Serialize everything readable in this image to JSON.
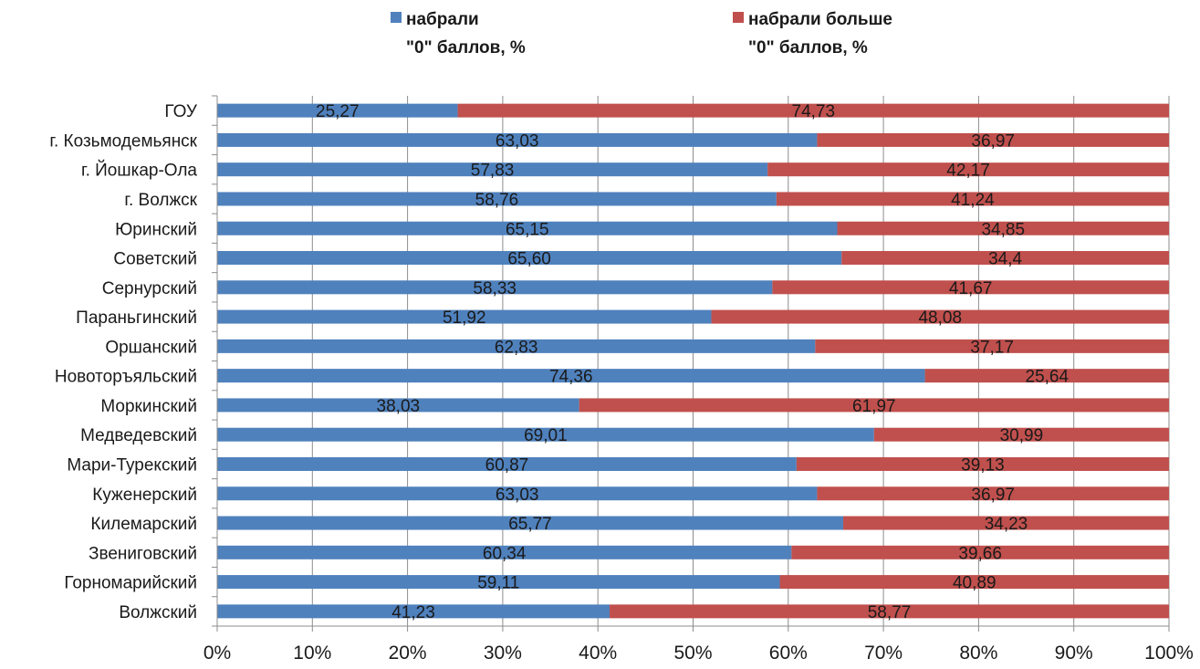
{
  "chart_data": {
    "type": "bar",
    "orientation": "horizontal",
    "stacked": true,
    "categories": [
      "ГОУ",
      "г. Козьмодемьянск",
      "г. Йошкар-Ола",
      "г. Волжск",
      "Юринский",
      "Советский",
      "Сернурский",
      "Параньгинский",
      "Оршанский",
      "Новоторъяльский",
      "Моркинский",
      "Медведевский",
      "Мари-Турекский",
      "Куженерский",
      "Килемарский",
      "Звениговский",
      "Горномарийский",
      "Волжский"
    ],
    "series": [
      {
        "name_lines": [
          "набрали",
          "\"0\" баллов, %"
        ],
        "color": "#4f81bd",
        "values": [
          25.27,
          63.03,
          57.83,
          58.76,
          65.15,
          65.6,
          58.33,
          51.92,
          62.83,
          74.36,
          38.03,
          69.01,
          60.87,
          63.03,
          65.77,
          60.34,
          59.11,
          41.23
        ],
        "labels": [
          "25,27",
          "63,03",
          "57,83",
          "58,76",
          "65,15",
          "65,60",
          "58,33",
          "51,92",
          "62,83",
          "74,36",
          "38,03",
          "69,01",
          "60,87",
          "63,03",
          "65,77",
          "60,34",
          "59,11",
          "41,23"
        ]
      },
      {
        "name_lines": [
          "набрали больше",
          "\"0\" баллов, %"
        ],
        "color": "#c0504d",
        "values": [
          74.73,
          36.97,
          42.17,
          41.24,
          34.85,
          34.4,
          41.67,
          48.08,
          37.17,
          25.64,
          61.97,
          30.99,
          39.13,
          36.97,
          34.23,
          39.66,
          40.89,
          58.77
        ],
        "labels": [
          "74,73",
          "36,97",
          "42,17",
          "41,24",
          "34,85",
          "34,4",
          "41,67",
          "48,08",
          "37,17",
          "25,64",
          "61,97",
          "30,99",
          "39,13",
          "36,97",
          "34,23",
          "39,66",
          "40,89",
          "58,77"
        ]
      }
    ],
    "xlim": [
      0,
      100
    ],
    "x_ticks": [
      "0%",
      "10%",
      "20%",
      "30%",
      "40%",
      "50%",
      "60%",
      "70%",
      "80%",
      "90%",
      "100%"
    ],
    "grid": "vertical",
    "legend_position": "top"
  }
}
